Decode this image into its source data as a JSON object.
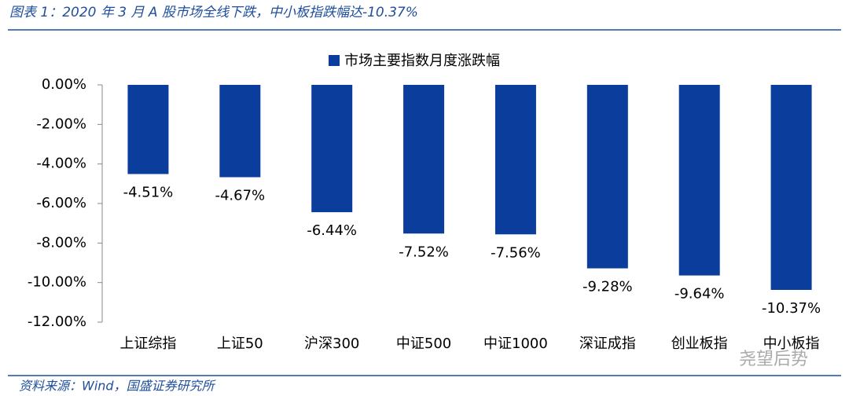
{
  "chart_data": {
    "type": "bar",
    "title": "图表 1：2020 年 3 月 A 股市场全线下跌，中小板指跌幅达-10.37%",
    "source": "资料来源：Wind，国盛证券研究所",
    "watermark": "尧望后势",
    "categories": [
      "上证综指",
      "上证50",
      "沪深300",
      "中证500",
      "中证1000",
      "深证成指",
      "创业板指",
      "中小板指"
    ],
    "series": [
      {
        "name": "市场主要指数月度涨跌幅",
        "color": "#0b3e9c",
        "values": [
          -4.51,
          -4.67,
          -6.44,
          -7.52,
          -7.56,
          -9.28,
          -9.64,
          -10.37
        ],
        "value_labels": [
          "-4.51%",
          "-4.67%",
          "-6.44%",
          "-7.52%",
          "-7.56%",
          "-9.28%",
          "-9.64%",
          "-10.37%"
        ]
      }
    ],
    "ylim": [
      -12,
      0
    ],
    "yticks": [
      {
        "value": 0,
        "label": "0.00%"
      },
      {
        "value": -2,
        "label": "-2.00%"
      },
      {
        "value": -4,
        "label": "-4.00%"
      },
      {
        "value": -6,
        "label": "-6.00%"
      },
      {
        "value": -8,
        "label": "-8.00%"
      },
      {
        "value": -10,
        "label": "-10.00%"
      },
      {
        "value": -12,
        "label": "-12.00%"
      }
    ],
    "legend": "top"
  }
}
